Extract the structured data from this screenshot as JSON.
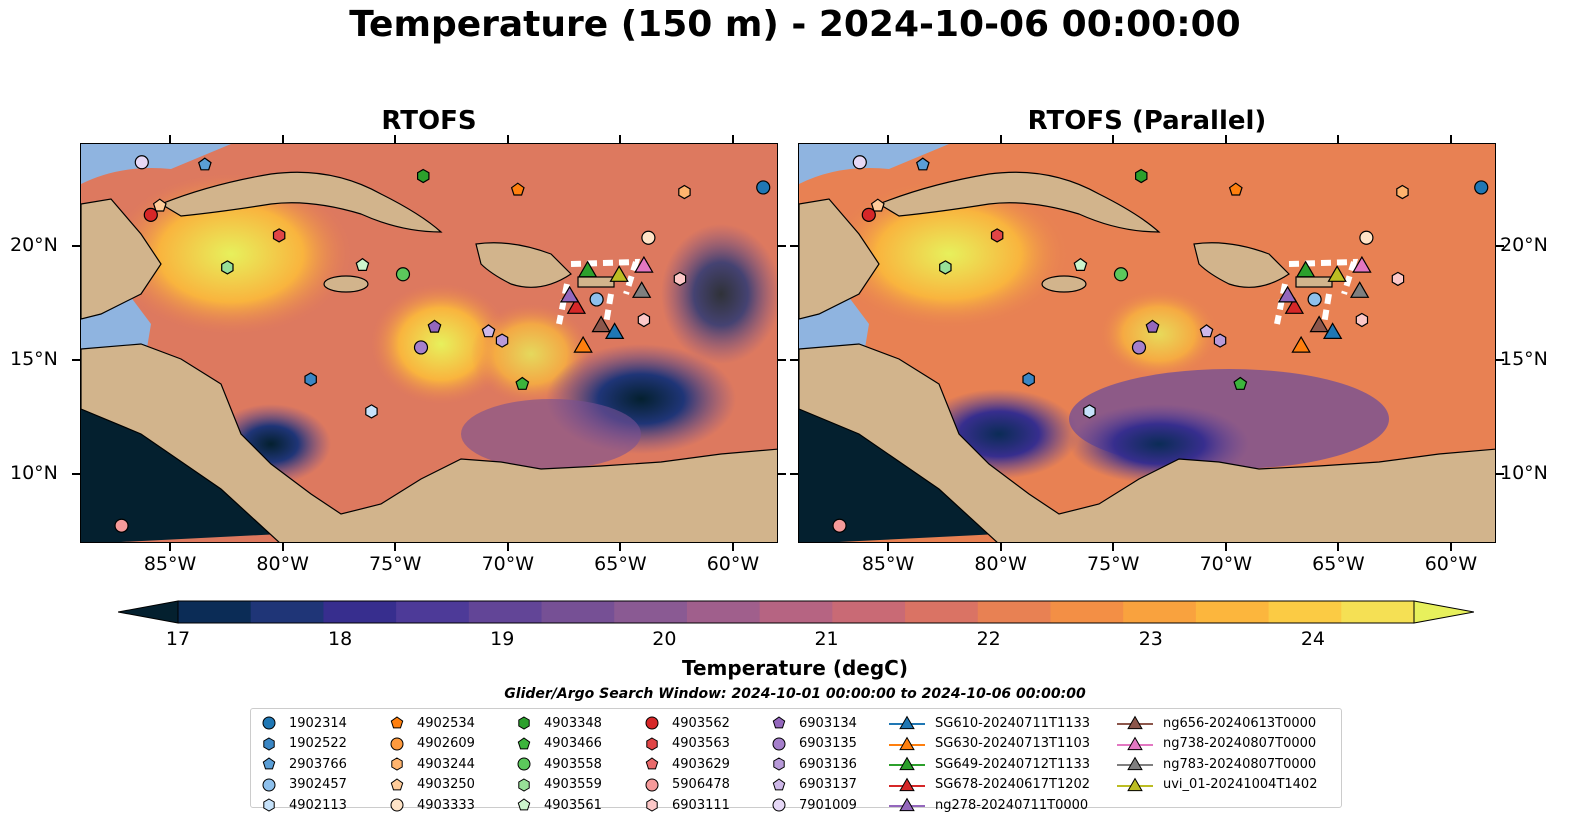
{
  "title": "Temperature (150 m) - 2024-10-06 00:00:00",
  "panels": [
    {
      "title": "RTOFS"
    },
    {
      "title": "RTOFS (Parallel)"
    }
  ],
  "axes": {
    "lon_ticks": [
      "85°W",
      "80°W",
      "75°W",
      "70°W",
      "65°W",
      "60°W"
    ],
    "lat_ticks": [
      "20°N",
      "15°N",
      "10°N"
    ],
    "lon_range": [
      -89,
      -58
    ],
    "lat_range": [
      7,
      24.5
    ]
  },
  "colorbar": {
    "label": "Temperature (degC)",
    "ticks": [
      "17",
      "18",
      "19",
      "20",
      "21",
      "22",
      "23",
      "24"
    ],
    "range": [
      16.75,
      24.75
    ],
    "colors": [
      "#04202f",
      "#0b2c56",
      "#1f3577",
      "#372e8e",
      "#4d3a98",
      "#624597",
      "#765095",
      "#8a5a93",
      "#a05f8c",
      "#b66482",
      "#c96a75",
      "#da7364",
      "#e88153",
      "#f38f45",
      "#f9a23e",
      "#fcb63d",
      "#fbcb44",
      "#f5e054",
      "#e7f05c"
    ],
    "extend": "both"
  },
  "legend": {
    "title": "Glider/Argo Search Window: 2024-10-01 00:00:00 to 2024-10-06 00:00:00",
    "columns": [
      [
        {
          "label": "1902314",
          "marker": "circle",
          "color": "#1f77b4"
        },
        {
          "label": "1902522",
          "marker": "hexagon",
          "color": "#3a86c4"
        },
        {
          "label": "2903766",
          "marker": "pentagon",
          "color": "#5a9ed6"
        },
        {
          "label": "3902457",
          "marker": "circle",
          "color": "#8ec0ec"
        },
        {
          "label": "4902113",
          "marker": "hexagon",
          "color": "#c6e2fa"
        }
      ],
      [
        {
          "label": "4902534",
          "marker": "pentagon",
          "color": "#ff7f0e"
        },
        {
          "label": "4902609",
          "marker": "circle",
          "color": "#ff9a3d"
        },
        {
          "label": "4903244",
          "marker": "hexagon",
          "color": "#ffb46e"
        },
        {
          "label": "4903250",
          "marker": "pentagon",
          "color": "#ffcc9a"
        },
        {
          "label": "4903333",
          "marker": "circle",
          "color": "#ffe4c8"
        }
      ],
      [
        {
          "label": "4903348",
          "marker": "hexagon",
          "color": "#2ca02c"
        },
        {
          "label": "4903466",
          "marker": "pentagon",
          "color": "#3cb43c"
        },
        {
          "label": "4903558",
          "marker": "circle",
          "color": "#5cc85c"
        },
        {
          "label": "4903559",
          "marker": "hexagon",
          "color": "#98e098"
        },
        {
          "label": "4903561",
          "marker": "pentagon",
          "color": "#ccf5cc"
        }
      ],
      [
        {
          "label": "4903562",
          "marker": "circle",
          "color": "#d62728"
        },
        {
          "label": "4903563",
          "marker": "hexagon",
          "color": "#e04546"
        },
        {
          "label": "4903629",
          "marker": "pentagon",
          "color": "#ea6a6b"
        },
        {
          "label": "5906478",
          "marker": "circle",
          "color": "#f59a9a"
        },
        {
          "label": "6903111",
          "marker": "hexagon",
          "color": "#fcc8c8"
        }
      ],
      [
        {
          "label": "6903134",
          "marker": "pentagon",
          "color": "#9467bd"
        },
        {
          "label": "6903135",
          "marker": "circle",
          "color": "#a57fcb"
        },
        {
          "label": "6903136",
          "marker": "hexagon",
          "color": "#b89ad9"
        },
        {
          "label": "6903137",
          "marker": "pentagon",
          "color": "#ceb8e8"
        },
        {
          "label": "7901009",
          "marker": "circle",
          "color": "#e6d8f6"
        }
      ],
      [
        {
          "label": "SG610-20240711T1133",
          "marker": "triangle",
          "color": "#1f77b4"
        },
        {
          "label": "SG630-20240713T1103",
          "marker": "triangle",
          "color": "#ff7f0e"
        },
        {
          "label": "SG649-20240712T1133",
          "marker": "triangle",
          "color": "#2ca02c"
        },
        {
          "label": "SG678-20240617T1202",
          "marker": "triangle",
          "color": "#d62728"
        },
        {
          "label": "ng278-20240711T0000",
          "marker": "triangle",
          "color": "#9467bd"
        }
      ],
      [
        {
          "label": "ng656-20240613T0000",
          "marker": "triangle",
          "color": "#8c564b"
        },
        {
          "label": "ng738-20240807T0000",
          "marker": "triangle",
          "color": "#e377c2"
        },
        {
          "label": "ng783-20240807T0000",
          "marker": "triangle",
          "color": "#7f7f7f"
        },
        {
          "label": "uvi_01-20241004T1402",
          "marker": "triangle",
          "color": "#bcbd22"
        }
      ]
    ]
  },
  "argo_floats": [
    {
      "id": "1902314",
      "lon": -58.7,
      "lat": 22.6
    },
    {
      "id": "1902522",
      "lon": -78.8,
      "lat": 14.2
    },
    {
      "id": "2903766",
      "lon": -83.5,
      "lat": 23.6
    },
    {
      "id": "3902457",
      "lon": -66.1,
      "lat": 17.7
    },
    {
      "id": "4902113",
      "lon": -76.1,
      "lat": 12.8
    },
    {
      "id": "4902534",
      "lon": -69.6,
      "lat": 22.5
    },
    {
      "id": "4903244",
      "lon": -62.2,
      "lat": 22.4
    },
    {
      "id": "4903250",
      "lon": -85.5,
      "lat": 21.8
    },
    {
      "id": "4903333",
      "lon": -63.8,
      "lat": 20.4
    },
    {
      "id": "4903348",
      "lon": -73.8,
      "lat": 23.1
    },
    {
      "id": "4903466",
      "lon": -69.4,
      "lat": 14.0
    },
    {
      "id": "4903558",
      "lon": -74.7,
      "lat": 18.8
    },
    {
      "id": "4903559",
      "lon": -82.5,
      "lat": 19.1
    },
    {
      "id": "4903561",
      "lon": -76.5,
      "lat": 19.2
    },
    {
      "id": "4903562",
      "lon": -85.9,
      "lat": 21.4
    },
    {
      "id": "4903563",
      "lon": -80.2,
      "lat": 20.5
    },
    {
      "id": "5906478",
      "lon": -87.2,
      "lat": 7.8
    },
    {
      "id": "6903111",
      "lon": -62.4,
      "lat": 18.6
    },
    {
      "id": "6903111b",
      "lon": -64.0,
      "lat": 16.8
    },
    {
      "id": "6903134",
      "lon": -73.3,
      "lat": 16.5
    },
    {
      "id": "6903135",
      "lon": -73.9,
      "lat": 15.6
    },
    {
      "id": "6903136",
      "lon": -70.3,
      "lat": 15.9
    },
    {
      "id": "6903137",
      "lon": -70.9,
      "lat": 16.3
    },
    {
      "id": "7901009",
      "lon": -86.3,
      "lat": 23.7
    }
  ],
  "gliders": [
    {
      "id": "SG610-20240711T1133",
      "lon": -65.3,
      "lat": 16.3
    },
    {
      "id": "SG630-20240713T1103",
      "lon": -66.7,
      "lat": 15.7
    },
    {
      "id": "SG649-20240712T1133",
      "lon": -66.5,
      "lat": 19.0
    },
    {
      "id": "SG678-20240617T1202",
      "lon": -67.0,
      "lat": 17.4
    },
    {
      "id": "ng278-20240711T0000",
      "lon": -67.3,
      "lat": 17.9
    },
    {
      "id": "ng656-20240613T0000",
      "lon": -65.9,
      "lat": 16.6
    },
    {
      "id": "ng738-20240807T0000",
      "lon": -64.0,
      "lat": 19.2
    },
    {
      "id": "ng783-20240807T0000",
      "lon": -64.1,
      "lat": 18.1
    },
    {
      "id": "uvi_01-20241004T1402",
      "lon": -65.1,
      "lat": 18.8
    }
  ]
}
